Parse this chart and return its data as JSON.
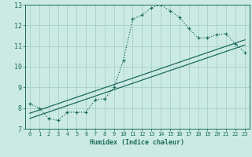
{
  "title": "",
  "xlabel": "Humidex (Indice chaleur)",
  "ylabel": "",
  "bg_color": "#cceae4",
  "grid_color": "#aad4cc",
  "line_color": "#1a6b5a",
  "ylim": [
    7,
    13
  ],
  "xlim": [
    -0.5,
    23.5
  ],
  "yticks": [
    7,
    8,
    9,
    10,
    11,
    12,
    13
  ],
  "xticks": [
    0,
    1,
    2,
    3,
    4,
    5,
    6,
    7,
    8,
    9,
    10,
    11,
    12,
    13,
    14,
    15,
    16,
    17,
    18,
    19,
    20,
    21,
    22,
    23
  ],
  "curve_x": [
    0,
    1,
    2,
    3,
    4,
    5,
    6,
    7,
    8,
    9,
    10,
    11,
    12,
    13,
    14,
    15,
    16,
    17,
    18,
    19,
    20,
    21,
    22,
    23
  ],
  "curve_y": [
    8.2,
    8.0,
    7.5,
    7.4,
    7.8,
    7.8,
    7.8,
    8.4,
    8.45,
    9.0,
    10.3,
    12.3,
    12.5,
    12.85,
    13.0,
    12.7,
    12.4,
    11.85,
    11.4,
    11.4,
    11.55,
    11.6,
    11.1,
    10.7
  ],
  "line1_x": [
    0,
    23
  ],
  "line1_y": [
    7.5,
    11.05
  ],
  "line2_x": [
    0,
    23
  ],
  "line2_y": [
    7.75,
    11.3
  ]
}
